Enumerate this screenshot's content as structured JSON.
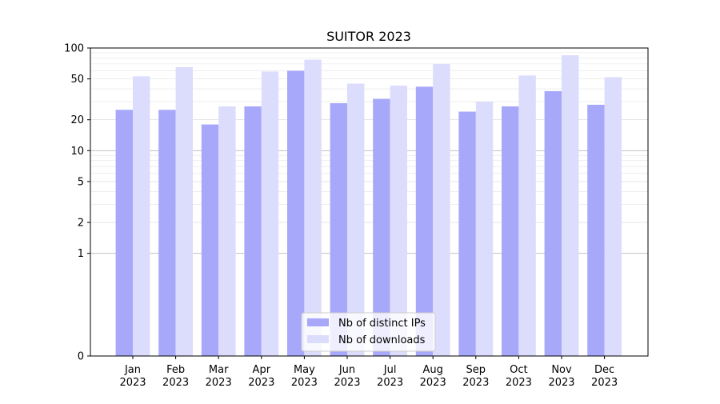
{
  "chart_data": {
    "type": "bar",
    "title": "SUITOR 2023",
    "xlabel": "",
    "ylabel": "",
    "yscale": "symlog",
    "ylim": [
      0,
      100
    ],
    "yticks": [
      0,
      1,
      2,
      5,
      10,
      20,
      50,
      100
    ],
    "ytick_labels": [
      "0",
      "1",
      "2",
      "5",
      "10",
      "20",
      "50",
      "100"
    ],
    "categories": [
      "Jan\n2023",
      "Feb\n2023",
      "Mar\n2023",
      "Apr\n2023",
      "May\n2023",
      "Jun\n2023",
      "Jul\n2023",
      "Aug\n2023",
      "Sep\n2023",
      "Oct\n2023",
      "Nov\n2023",
      "Dec\n2023"
    ],
    "series": [
      {
        "name": "Nb of distinct IPs",
        "color": "#a8a8fa",
        "values": [
          25,
          25,
          18,
          27,
          60,
          29,
          32,
          42,
          24,
          27,
          38,
          28
        ]
      },
      {
        "name": "Nb of downloads",
        "color": "#dcdcfc",
        "values": [
          53,
          65,
          27,
          59,
          77,
          45,
          43,
          70,
          30,
          54,
          85,
          52
        ]
      }
    ],
    "grid": true,
    "legend_position": "lower-center"
  }
}
